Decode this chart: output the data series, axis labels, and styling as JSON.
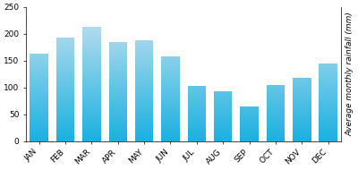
{
  "months": [
    "JAN",
    "FEB",
    "MAR",
    "APR",
    "MAY",
    "JUN",
    "JUL",
    "AUG",
    "SEP",
    "OCT",
    "NOV",
    "DEC"
  ],
  "values": [
    162,
    193,
    213,
    185,
    187,
    157,
    102,
    93,
    65,
    104,
    118,
    145
  ],
  "ylim": [
    0,
    250
  ],
  "yticks": [
    0,
    50,
    100,
    150,
    200,
    250
  ],
  "ylabel": "Average monthly rainfall (mm)",
  "bar_top_color": "#cce3f0",
  "bar_bottom_color": "#1ab0e0",
  "background_color": "#ffffff",
  "bar_width": 0.7,
  "ylabel_fontsize": 6.5,
  "tick_fontsize": 6.5,
  "tick_label_rotation": 45
}
